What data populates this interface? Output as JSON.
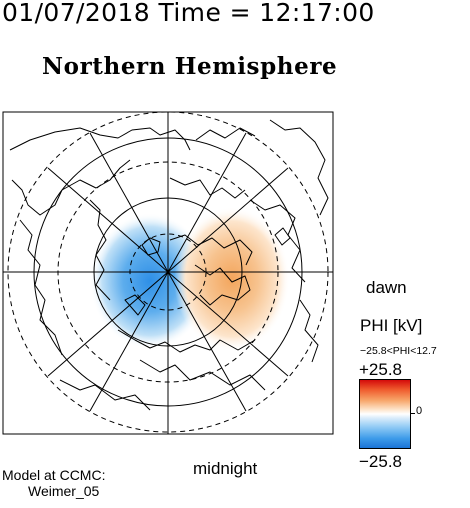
{
  "header": {
    "timestamp": "01/07/2018 Time = 12:17:00",
    "hemisphere": "Northern Hemisphere"
  },
  "map": {
    "dawn_label": "dawn",
    "midnight_label": "midnight",
    "potential_cells": [
      {
        "name": "negative-cell",
        "color": "#2e8fe6",
        "sign": "negative"
      },
      {
        "name": "positive-cell",
        "color": "#f3a55c",
        "sign": "positive"
      }
    ]
  },
  "colorbar": {
    "title": "PHI [kV]",
    "range_text": "−25.8<PHI<12.7",
    "max_label": "+25.8",
    "mid_label": "0",
    "min_label": "−25.8",
    "max_color": "#d40b0b",
    "min_color": "#1b74d6"
  },
  "credit": {
    "line1": "Model at CCMC:",
    "line2": "Weimer_05"
  }
}
